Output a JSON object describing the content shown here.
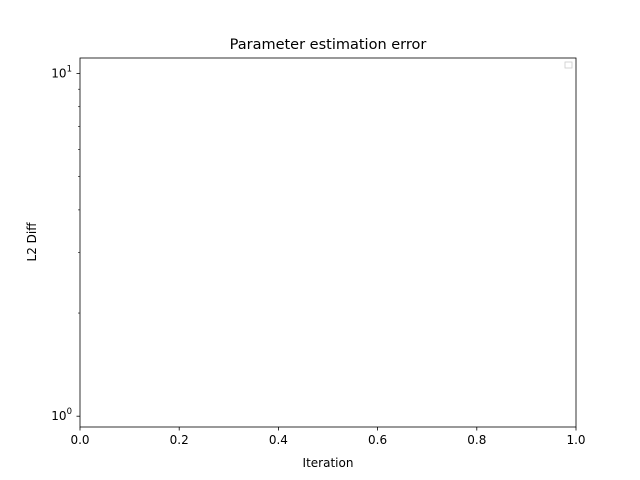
{
  "chart_data": {
    "type": "line",
    "title": "Parameter estimation error",
    "xlabel": "Iteration",
    "ylabel": "L2 Diff",
    "xlim": [
      0.0,
      1.0
    ],
    "ylim": [
      0.93,
      11.1
    ],
    "yscale": "log",
    "grid": false,
    "legend": {
      "placement": "upper right",
      "entries": []
    },
    "series": [],
    "x_ticks": [
      {
        "value": 0.0,
        "label": "0.0"
      },
      {
        "value": 0.2,
        "label": "0.2"
      },
      {
        "value": 0.4,
        "label": "0.4"
      },
      {
        "value": 0.6,
        "label": "0.6"
      },
      {
        "value": 0.8,
        "label": "0.8"
      },
      {
        "value": 1.0,
        "label": "1.0"
      }
    ],
    "y_ticks_major": [
      {
        "value": 1,
        "base": "10",
        "exp": "0"
      },
      {
        "value": 10,
        "base": "10",
        "exp": "1"
      }
    ],
    "y_ticks_minor": [
      2,
      3,
      4,
      5,
      6,
      7,
      8,
      9
    ]
  }
}
